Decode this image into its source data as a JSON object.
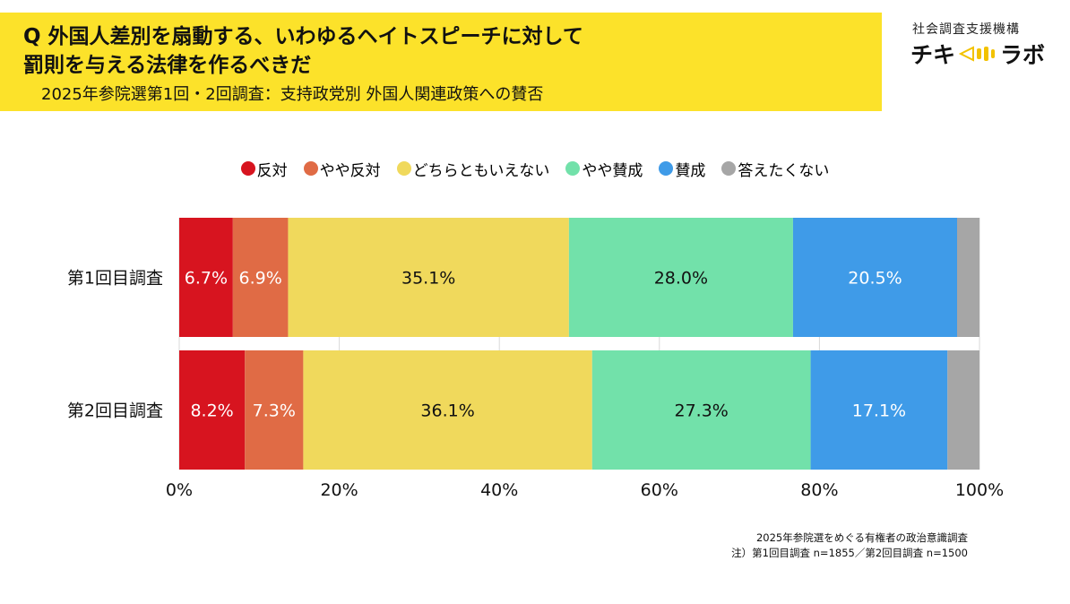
{
  "header": {
    "title_line1": "Q 外国人差別を扇動する、いわゆるヘイトスピーチに対して",
    "title_line2": "罰則を与える法律を作るべきだ",
    "subtitle": "2025年参院選第1回・2回調査：支持政党別 外国人関連政策への賛否",
    "org_name": "社会調査支援機構",
    "logo_left": "チキ",
    "logo_right": "ラボ",
    "logo_mark": "speaker-icon",
    "accent_color": "#fce22a"
  },
  "legend": [
    {
      "label": "反対",
      "color": "#d7141f"
    },
    {
      "label": "やや反対",
      "color": "#e06b45"
    },
    {
      "label": "どちらともいえない",
      "color": "#f0d95c"
    },
    {
      "label": "やや賛成",
      "color": "#72e1aa"
    },
    {
      "label": "賛成",
      "color": "#3f9be8"
    },
    {
      "label": "答えたくない",
      "color": "#a6a6a6"
    }
  ],
  "chart_data": {
    "type": "bar",
    "orientation": "horizontal",
    "stacked": true,
    "categories": [
      "第1回目調査",
      "第2回目調査"
    ],
    "series": [
      {
        "name": "反対",
        "color": "#d7141f",
        "text_color": "#ffffff",
        "values": [
          6.7,
          8.2
        ],
        "labels": [
          "6.7%",
          "8.2%"
        ]
      },
      {
        "name": "やや反対",
        "color": "#e06b45",
        "text_color": "#ffffff",
        "values": [
          6.9,
          7.3
        ],
        "labels": [
          "6.9%",
          "7.3%"
        ]
      },
      {
        "name": "どちらともいえない",
        "color": "#f0d95c",
        "text_color": "#111111",
        "values": [
          35.1,
          36.1
        ],
        "labels": [
          "35.1%",
          "36.1%"
        ]
      },
      {
        "name": "やや賛成",
        "color": "#72e1aa",
        "text_color": "#111111",
        "values": [
          28.0,
          27.3
        ],
        "labels": [
          "28.0%",
          "27.3%"
        ]
      },
      {
        "name": "賛成",
        "color": "#3f9be8",
        "text_color": "#ffffff",
        "values": [
          20.5,
          17.1
        ],
        "labels": [
          "20.5%",
          "17.1%"
        ]
      },
      {
        "name": "答えたくない",
        "color": "#a6a6a6",
        "text_color": "#ffffff",
        "values": [
          2.8,
          4.0
        ],
        "labels": [
          "",
          ""
        ]
      }
    ],
    "xlim": [
      0,
      100
    ],
    "x_ticks": [
      "0%",
      "20%",
      "40%",
      "60%",
      "80%",
      "100%"
    ],
    "grid": true,
    "legend_position": "top"
  },
  "note": {
    "line1": "2025年参院選をめぐる有権者の政治意識調査",
    "line2": "注）第1回目調査 n=1855／第2回目調査 n=1500"
  }
}
